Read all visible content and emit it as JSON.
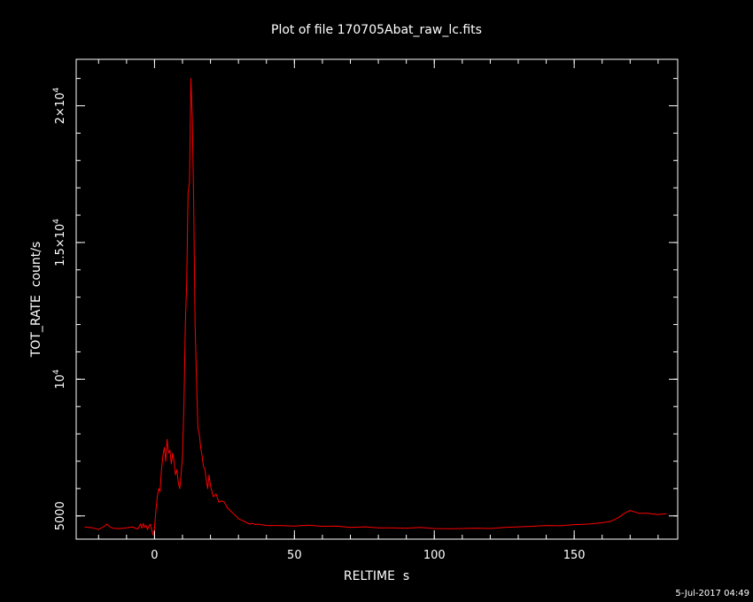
{
  "chart_data": {
    "type": "line",
    "title": "Plot of file 170705Abat_raw_lc.fits",
    "xlabel": "RELTIME  s",
    "ylabel": "TOT_RATE  count/s",
    "xlim": [
      -28,
      187
    ],
    "ylim": [
      4150,
      21700
    ],
    "x_ticks": [
      {
        "value": 0,
        "label": "0"
      },
      {
        "value": 50,
        "label": "50"
      },
      {
        "value": 100,
        "label": "100"
      },
      {
        "value": 150,
        "label": "150"
      }
    ],
    "y_ticks": [
      {
        "value": 5000,
        "mantissa": "5000",
        "exponent": ""
      },
      {
        "value": 10000,
        "mantissa": "10",
        "exponent": "4"
      },
      {
        "value": 15000,
        "mantissa": "1.5×10",
        "exponent": "4"
      },
      {
        "value": 20000,
        "mantissa": "2×10",
        "exponent": "4"
      }
    ],
    "x_minor_step": 10,
    "y_minor_step": 1000,
    "grid": false,
    "background": "#000000",
    "axis_color": "#ffffff",
    "series": [
      {
        "color": "#ff0000",
        "x": [
          -25,
          -22,
          -20,
          -18,
          -17,
          -16,
          -15,
          -13,
          -10,
          -8,
          -6,
          -5,
          -4.5,
          -4,
          -3.5,
          -3,
          -2.5,
          -2,
          -1.5,
          -1,
          -0.5,
          0,
          0.5,
          1,
          1.5,
          2,
          2.5,
          3,
          3.5,
          4,
          4.5,
          5,
          5.5,
          6,
          6.5,
          7,
          7.5,
          8,
          8.5,
          9,
          9.5,
          10,
          10.5,
          11,
          11.5,
          12,
          12.5,
          13,
          13.5,
          14,
          14.5,
          15,
          15.5,
          16,
          16.5,
          17,
          17.5,
          18,
          18.5,
          19,
          19.5,
          20,
          21,
          22,
          23,
          24,
          25,
          26,
          27,
          28,
          29,
          30,
          31,
          32,
          33,
          34,
          35,
          36,
          37,
          38,
          40,
          45,
          50,
          55,
          60,
          65,
          70,
          75,
          80,
          85,
          90,
          95,
          100,
          105,
          110,
          115,
          120,
          125,
          130,
          135,
          140,
          145,
          150,
          155,
          160,
          163,
          166,
          168,
          170,
          173,
          176,
          180,
          183
        ],
        "y": [
          4600,
          4560,
          4500,
          4620,
          4700,
          4600,
          4550,
          4530,
          4560,
          4600,
          4520,
          4700,
          4550,
          4720,
          4580,
          4650,
          4500,
          4620,
          4700,
          4480,
          4300,
          4550,
          5200,
          5700,
          6000,
          5900,
          6700,
          7200,
          7500,
          7000,
          7800,
          7300,
          7400,
          6900,
          7300,
          7000,
          6500,
          6700,
          6200,
          6000,
          6500,
          7200,
          9000,
          12000,
          13500,
          16800,
          17200,
          21000,
          19500,
          16500,
          12000,
          10000,
          8200,
          8000,
          7500,
          7200,
          6800,
          6700,
          6300,
          6000,
          6500,
          6100,
          5700,
          5800,
          5500,
          5550,
          5500,
          5300,
          5200,
          5100,
          5000,
          4900,
          4850,
          4800,
          4750,
          4700,
          4730,
          4680,
          4700,
          4680,
          4650,
          4650,
          4630,
          4660,
          4620,
          4630,
          4580,
          4600,
          4560,
          4560,
          4550,
          4580,
          4540,
          4530,
          4540,
          4550,
          4540,
          4580,
          4600,
          4620,
          4650,
          4640,
          4680,
          4700,
          4750,
          4800,
          4950,
          5100,
          5200,
          5100,
          5100,
          5050,
          5080
        ]
      }
    ]
  },
  "footer": {
    "timestamp": "5-Jul-2017 04:49"
  }
}
